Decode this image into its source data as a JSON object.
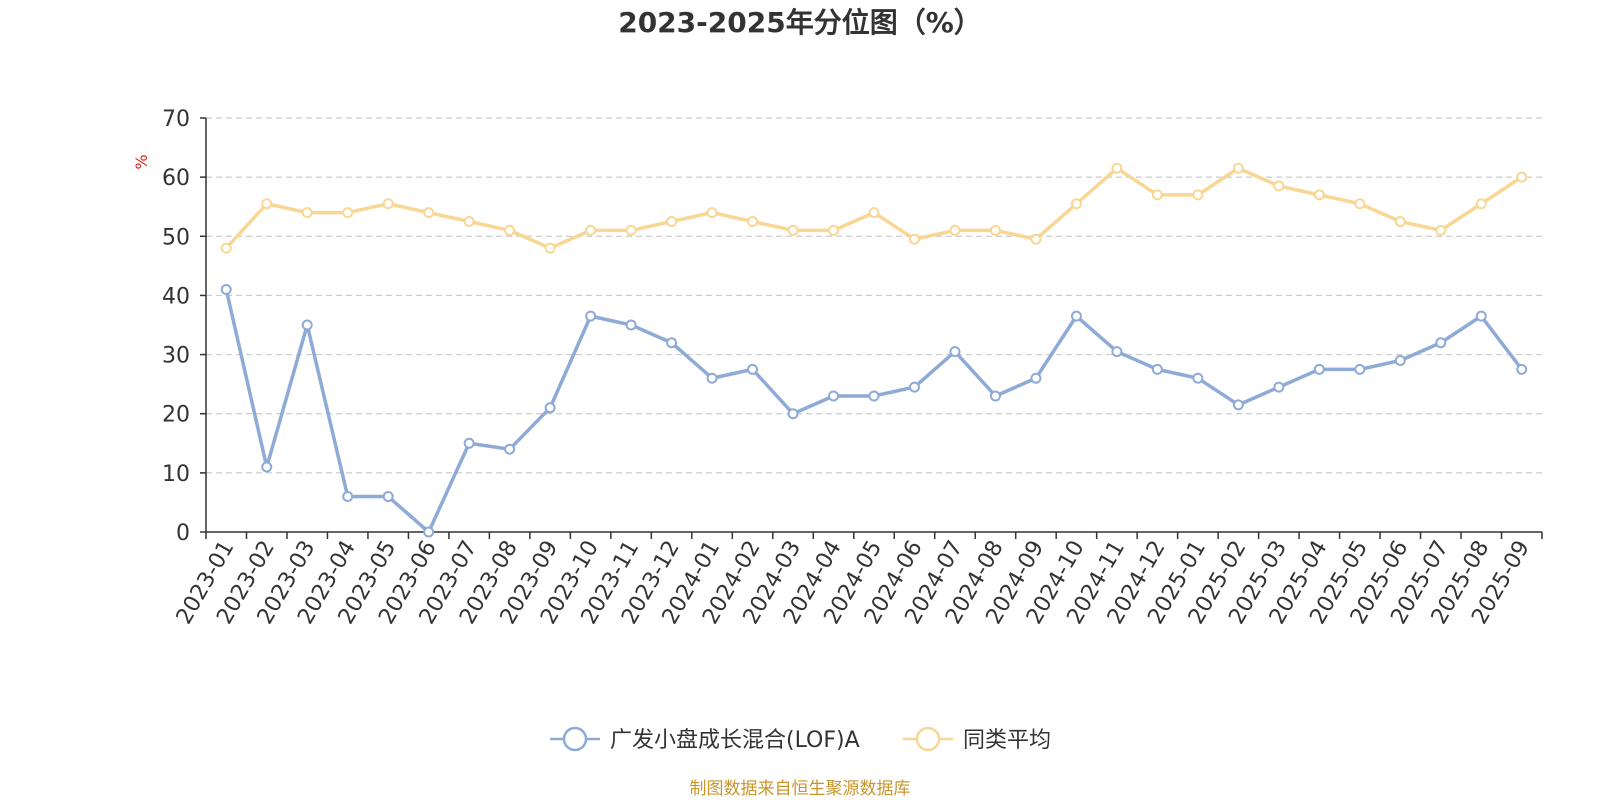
{
  "chart_data": {
    "type": "line",
    "title": "2023-2025年分位图（%）",
    "ylabel": "%",
    "xlabel": "",
    "ylim": [
      0,
      70
    ],
    "yticks": [
      0,
      10,
      20,
      30,
      40,
      50,
      60,
      70
    ],
    "grid": true,
    "legend_position": "bottom-center",
    "categories": [
      "2023-01",
      "2023-02",
      "2023-03",
      "2023-04",
      "2023-05",
      "2023-06",
      "2023-07",
      "2023-08",
      "2023-09",
      "2023-10",
      "2023-11",
      "2023-12",
      "2024-01",
      "2024-02",
      "2024-03",
      "2024-04",
      "2024-05",
      "2024-06",
      "2024-07",
      "2024-08",
      "2024-09",
      "2024-10",
      "2024-11",
      "2024-12",
      "2025-01",
      "2025-02",
      "2025-03",
      "2025-04",
      "2025-05",
      "2025-06",
      "2025-07",
      "2025-08",
      "2025-09"
    ],
    "series": [
      {
        "name": "广发小盘成长混合(LOF)A",
        "color": "#8eaad6",
        "values": [
          41,
          11,
          35,
          6,
          6,
          0,
          15,
          14,
          21,
          36.5,
          35,
          32,
          26,
          27.5,
          20,
          23,
          23,
          24.5,
          30.5,
          23,
          26,
          36.5,
          30.5,
          27.5,
          26,
          21.5,
          24.5,
          27.5,
          27.5,
          29,
          32,
          36.5,
          27.5
        ]
      },
      {
        "name": "同类平均",
        "color": "#f8d794",
        "values": [
          48,
          55.5,
          54,
          54,
          55.5,
          54,
          52.5,
          51,
          48,
          51,
          51,
          52.5,
          54,
          52.5,
          51,
          51,
          54,
          49.5,
          51,
          51,
          49.5,
          55.5,
          61.5,
          57,
          57,
          61.5,
          58.5,
          57,
          55.5,
          52.5,
          51,
          55.5,
          60
        ]
      }
    ]
  },
  "footer": {
    "source": "制图数据来自恒生聚源数据库"
  }
}
